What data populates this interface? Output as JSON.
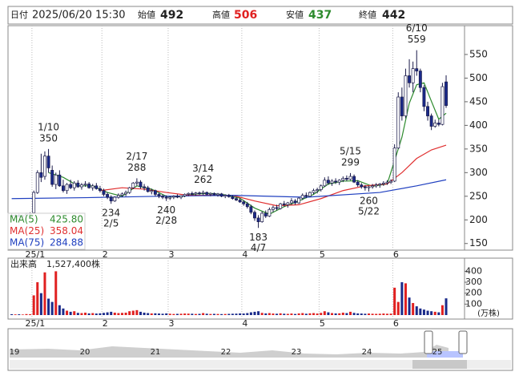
{
  "header": {
    "date_label": "日付",
    "datetime": "2025/06/20 15:30",
    "open": {
      "label": "始値",
      "value": 492
    },
    "high": {
      "label": "高値",
      "value": 506
    },
    "low": {
      "label": "安値",
      "value": 437
    },
    "close": {
      "label": "終値",
      "value": 442
    }
  },
  "chart_data": {
    "type": "candlestick",
    "up_color": "#ffffff",
    "down_color": "#1a2a8a",
    "up_volume_color": "#e02020",
    "down_volume_color": "#1a2a8a",
    "xlim": [
      -1,
      123
    ],
    "xticks": [
      {
        "value": 6,
        "label": "25/1"
      },
      {
        "value": 25,
        "label": "2"
      },
      {
        "value": 43,
        "label": "3"
      },
      {
        "value": 63,
        "label": "4"
      },
      {
        "value": 84,
        "label": "5"
      },
      {
        "value": 104,
        "label": "6"
      }
    ],
    "ylim": [
      136,
      611
    ],
    "yticks": [
      150,
      200,
      250,
      300,
      350,
      400,
      450,
      500,
      550
    ],
    "ohlc": [
      [
        210,
        214,
        205,
        208
      ],
      [
        208,
        212,
        204,
        210
      ],
      [
        210,
        213,
        206,
        207
      ],
      [
        207,
        211,
        203,
        209
      ],
      [
        209,
        215,
        206,
        212
      ],
      [
        212,
        216,
        208,
        214
      ],
      [
        215,
        262,
        214,
        258
      ],
      [
        258,
        305,
        255,
        300
      ],
      [
        300,
        340,
        280,
        290
      ],
      [
        292,
        345,
        285,
        335
      ],
      [
        335,
        350,
        300,
        310
      ],
      [
        305,
        315,
        270,
        275
      ],
      [
        275,
        300,
        265,
        295
      ],
      [
        295,
        305,
        270,
        272
      ],
      [
        272,
        285,
        258,
        262
      ],
      [
        262,
        278,
        255,
        275
      ],
      [
        275,
        285,
        265,
        268
      ],
      [
        268,
        282,
        262,
        278
      ],
      [
        278,
        284,
        268,
        270
      ],
      [
        270,
        278,
        264,
        274
      ],
      [
        274,
        282,
        270,
        276
      ],
      [
        276,
        280,
        266,
        268
      ],
      [
        268,
        276,
        262,
        272
      ],
      [
        272,
        278,
        264,
        266
      ],
      [
        266,
        272,
        258,
        262
      ],
      [
        262,
        266,
        250,
        254
      ],
      [
        254,
        258,
        244,
        248
      ],
      [
        248,
        252,
        234,
        240
      ],
      [
        240,
        250,
        238,
        248
      ],
      [
        248,
        256,
        245,
        252
      ],
      [
        252,
        258,
        248,
        255
      ],
      [
        255,
        262,
        250,
        258
      ],
      [
        258,
        270,
        255,
        268
      ],
      [
        268,
        280,
        265,
        278
      ],
      [
        278,
        288,
        272,
        280
      ],
      [
        280,
        284,
        266,
        270
      ],
      [
        270,
        276,
        262,
        268
      ],
      [
        268,
        272,
        258,
        260
      ],
      [
        260,
        266,
        254,
        262
      ],
      [
        262,
        264,
        250,
        254
      ],
      [
        254,
        258,
        246,
        250
      ],
      [
        250,
        254,
        244,
        248
      ],
      [
        248,
        252,
        240,
        246
      ],
      [
        246,
        250,
        242,
        248
      ],
      [
        248,
        252,
        244,
        250
      ],
      [
        250,
        254,
        246,
        248
      ],
      [
        248,
        252,
        244,
        251
      ],
      [
        251,
        256,
        248,
        254
      ],
      [
        254,
        258,
        250,
        256
      ],
      [
        256,
        260,
        252,
        255
      ],
      [
        255,
        259,
        251,
        257
      ],
      [
        257,
        260,
        253,
        256
      ],
      [
        256,
        262,
        252,
        258
      ],
      [
        258,
        260,
        252,
        254
      ],
      [
        254,
        258,
        250,
        256
      ],
      [
        256,
        258,
        251,
        253
      ],
      [
        253,
        257,
        249,
        255
      ],
      [
        255,
        257,
        248,
        250
      ],
      [
        250,
        254,
        246,
        252
      ],
      [
        252,
        255,
        247,
        249
      ],
      [
        249,
        252,
        243,
        245
      ],
      [
        245,
        249,
        240,
        242
      ],
      [
        242,
        246,
        236,
        238
      ],
      [
        238,
        242,
        230,
        234
      ],
      [
        234,
        238,
        224,
        228
      ],
      [
        228,
        232,
        212,
        216
      ],
      [
        216,
        220,
        198,
        204
      ],
      [
        204,
        210,
        183,
        196
      ],
      [
        196,
        218,
        194,
        214
      ],
      [
        214,
        220,
        204,
        208
      ],
      [
        208,
        226,
        206,
        222
      ],
      [
        222,
        230,
        216,
        226
      ],
      [
        226,
        232,
        220,
        224
      ],
      [
        224,
        236,
        222,
        234
      ],
      [
        234,
        240,
        228,
        232
      ],
      [
        232,
        238,
        226,
        236
      ],
      [
        236,
        246,
        232,
        240
      ],
      [
        240,
        244,
        232,
        236
      ],
      [
        236,
        248,
        234,
        246
      ],
      [
        246,
        256,
        242,
        252
      ],
      [
        252,
        258,
        246,
        250
      ],
      [
        250,
        260,
        248,
        258
      ],
      [
        258,
        266,
        254,
        262
      ],
      [
        262,
        268,
        256,
        264
      ],
      [
        264,
        275,
        260,
        272
      ],
      [
        272,
        290,
        270,
        284
      ],
      [
        284,
        292,
        274,
        278
      ],
      [
        278,
        286,
        272,
        282
      ],
      [
        282,
        288,
        276,
        280
      ],
      [
        280,
        286,
        274,
        284
      ],
      [
        284,
        292,
        280,
        288
      ],
      [
        288,
        294,
        282,
        286
      ],
      [
        286,
        299,
        284,
        292
      ],
      [
        292,
        296,
        278,
        280
      ],
      [
        280,
        284,
        270,
        274
      ],
      [
        274,
        278,
        266,
        270
      ],
      [
        270,
        274,
        262,
        268
      ],
      [
        268,
        272,
        260,
        270
      ],
      [
        270,
        276,
        266,
        272
      ],
      [
        272,
        278,
        268,
        274
      ],
      [
        274,
        278,
        268,
        276
      ],
      [
        276,
        282,
        272,
        278
      ],
      [
        278,
        284,
        274,
        280
      ],
      [
        280,
        286,
        276,
        282
      ],
      [
        282,
        360,
        280,
        352
      ],
      [
        352,
        470,
        350,
        460
      ],
      [
        460,
        480,
        410,
        420
      ],
      [
        420,
        520,
        415,
        505
      ],
      [
        505,
        540,
        480,
        490
      ],
      [
        490,
        535,
        470,
        520
      ],
      [
        520,
        559,
        505,
        515
      ],
      [
        515,
        520,
        470,
        480
      ],
      [
        480,
        485,
        430,
        440
      ],
      [
        440,
        450,
        410,
        420
      ],
      [
        420,
        425,
        390,
        398
      ],
      [
        398,
        412,
        395,
        405
      ],
      [
        405,
        412,
        398,
        402
      ],
      [
        402,
        490,
        400,
        482
      ],
      [
        492,
        506,
        437,
        442
      ]
    ],
    "ma": [
      {
        "name": "MA(5)",
        "color": "#2e8b2e",
        "x": [
          10,
          14,
          18,
          22,
          26,
          30,
          34,
          38,
          42,
          46,
          50,
          54,
          58,
          62,
          66,
          70,
          74,
          78,
          82,
          86,
          90,
          94,
          98,
          102,
          106,
          108,
          110,
          112,
          114,
          116,
          118
        ],
        "values": [
          300,
          290,
          272,
          272,
          258,
          250,
          272,
          265,
          250,
          249,
          255,
          256,
          253,
          246,
          225,
          212,
          228,
          240,
          254,
          276,
          282,
          283,
          271,
          276,
          375,
          447,
          486,
          490,
          451,
          413,
          425.8
        ],
        "last": {
          "value": 425.8,
          "label": "425.80"
        }
      },
      {
        "name": "MA(25)",
        "color": "#e03030",
        "x": [
          24,
          30,
          36,
          42,
          48,
          54,
          60,
          66,
          72,
          78,
          84,
          90,
          96,
          102,
          106,
          110,
          114,
          118
        ],
        "values": [
          262,
          268,
          265,
          258,
          252,
          252,
          252,
          240,
          230,
          232,
          245,
          262,
          272,
          276,
          300,
          330,
          348,
          358.04
        ],
        "last": {
          "value": 358.04,
          "label": "358.04"
        }
      },
      {
        "name": "MA(75)",
        "color": "#2040c0",
        "x": [
          0,
          20,
          40,
          60,
          80,
          100,
          110,
          118
        ],
        "values": [
          245,
          247,
          250,
          252,
          248,
          258,
          272,
          284.88
        ],
        "last": {
          "value": 284.88,
          "label": "284.88"
        }
      }
    ],
    "annotations": [
      {
        "index": 10,
        "date": "1/10",
        "value": 350,
        "pos": "above"
      },
      {
        "index": 27,
        "date": "2/5",
        "value": 234,
        "pos": "below"
      },
      {
        "index": 34,
        "date": "2/17",
        "value": 288,
        "pos": "above"
      },
      {
        "index": 42,
        "date": "2/28",
        "value": 240,
        "pos": "below"
      },
      {
        "index": 52,
        "date": "3/14",
        "value": 262,
        "pos": "above"
      },
      {
        "index": 67,
        "date": "4/7",
        "value": 183,
        "pos": "below"
      },
      {
        "index": 92,
        "date": "5/15",
        "value": 299,
        "pos": "above"
      },
      {
        "index": 97,
        "date": "5/22",
        "value": 260,
        "pos": "below"
      },
      {
        "index": 110,
        "date": "6/10",
        "value": 559,
        "pos": "above"
      }
    ],
    "volume": {
      "title": "出来高",
      "last": {
        "value": 1527400,
        "label": "1,527,400株"
      },
      "unit": "(万株)",
      "ylim": [
        0,
        520
      ],
      "yticks": [
        100,
        200,
        300,
        400
      ],
      "values": [
        8,
        6,
        7,
        5,
        9,
        8,
        180,
        300,
        200,
        390,
        150,
        120,
        400,
        90,
        60,
        40,
        30,
        35,
        20,
        18,
        22,
        15,
        18,
        14,
        16,
        20,
        25,
        30,
        22,
        18,
        20,
        22,
        35,
        40,
        45,
        30,
        22,
        18,
        15,
        16,
        14,
        12,
        15,
        12,
        10,
        11,
        12,
        14,
        13,
        12,
        10,
        11,
        18,
        12,
        10,
        11,
        10,
        9,
        10,
        11,
        12,
        13,
        15,
        14,
        18,
        25,
        30,
        35,
        20,
        15,
        18,
        14,
        12,
        16,
        12,
        11,
        14,
        10,
        15,
        18,
        12,
        16,
        18,
        14,
        20,
        35,
        25,
        18,
        15,
        16,
        22,
        18,
        30,
        20,
        15,
        14,
        12,
        14,
        12,
        11,
        12,
        14,
        12,
        13,
        250,
        120,
        300,
        290,
        160,
        110,
        80,
        60,
        50,
        40,
        35,
        30,
        25,
        90,
        152.74
      ]
    },
    "navigator": {
      "ticks": [
        19,
        20,
        21,
        22,
        23,
        24,
        25
      ]
    }
  }
}
